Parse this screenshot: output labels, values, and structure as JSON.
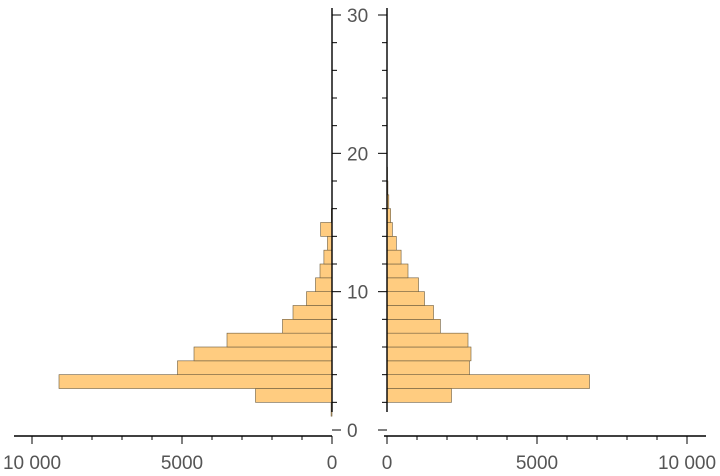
{
  "chart_data": {
    "type": "bar",
    "orientation": "horizontal",
    "layout": "back-to-back",
    "bin_width": 1,
    "bar_color": "#ffcc80",
    "y_axis": {
      "range": [
        0,
        31
      ],
      "major_ticks": [
        0,
        10,
        20,
        30
      ],
      "tick_labels": [
        "0",
        "10",
        "20",
        "30"
      ]
    },
    "left_panel": {
      "x_range": [
        0,
        10000
      ],
      "reversed": true,
      "major_ticks": [
        0,
        5000,
        10000
      ],
      "tick_labels": [
        "0",
        "5000",
        "10 000"
      ],
      "bins": [
        {
          "y0": 1,
          "y1": 2,
          "value": 30
        },
        {
          "y0": 2,
          "y1": 3,
          "value": 2550
        },
        {
          "y0": 3,
          "y1": 4,
          "value": 9100
        },
        {
          "y0": 4,
          "y1": 5,
          "value": 5150
        },
        {
          "y0": 5,
          "y1": 6,
          "value": 4600
        },
        {
          "y0": 6,
          "y1": 7,
          "value": 3500
        },
        {
          "y0": 7,
          "y1": 8,
          "value": 1650
        },
        {
          "y0": 8,
          "y1": 9,
          "value": 1300
        },
        {
          "y0": 9,
          "y1": 10,
          "value": 850
        },
        {
          "y0": 10,
          "y1": 11,
          "value": 550
        },
        {
          "y0": 11,
          "y1": 12,
          "value": 400
        },
        {
          "y0": 12,
          "y1": 13,
          "value": 270
        },
        {
          "y0": 13,
          "y1": 14,
          "value": 150
        },
        {
          "y0": 14,
          "y1": 15,
          "value": 380
        },
        {
          "y0": 15,
          "y1": 16,
          "value": 20
        }
      ]
    },
    "right_panel": {
      "x_range": [
        0,
        10000
      ],
      "reversed": false,
      "major_ticks": [
        0,
        5000,
        10000
      ],
      "tick_labels": [
        "0",
        "5000",
        "10 000"
      ],
      "bins": [
        {
          "y0": 2,
          "y1": 3,
          "value": 2150
        },
        {
          "y0": 3,
          "y1": 4,
          "value": 6750
        },
        {
          "y0": 4,
          "y1": 5,
          "value": 2750
        },
        {
          "y0": 5,
          "y1": 6,
          "value": 2800
        },
        {
          "y0": 6,
          "y1": 7,
          "value": 2700
        },
        {
          "y0": 7,
          "y1": 8,
          "value": 1780
        },
        {
          "y0": 8,
          "y1": 9,
          "value": 1550
        },
        {
          "y0": 9,
          "y1": 10,
          "value": 1250
        },
        {
          "y0": 10,
          "y1": 11,
          "value": 1050
        },
        {
          "y0": 11,
          "y1": 12,
          "value": 700
        },
        {
          "y0": 12,
          "y1": 13,
          "value": 470
        },
        {
          "y0": 13,
          "y1": 14,
          "value": 310
        },
        {
          "y0": 14,
          "y1": 15,
          "value": 180
        },
        {
          "y0": 15,
          "y1": 16,
          "value": 120
        },
        {
          "y0": 16,
          "y1": 17,
          "value": 60
        },
        {
          "y0": 17,
          "y1": 18,
          "value": 30
        },
        {
          "y0": 18,
          "y1": 19,
          "value": 15
        }
      ]
    }
  }
}
